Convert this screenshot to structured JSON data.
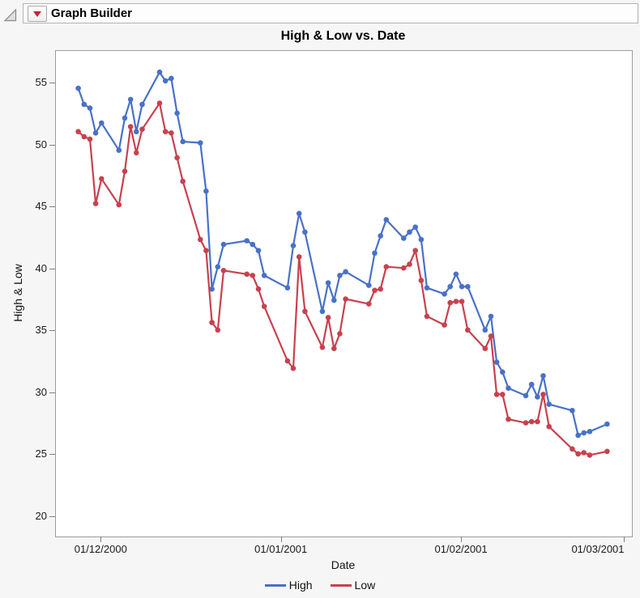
{
  "header": {
    "title": "Graph Builder",
    "icons": {
      "disclosure": "outline-open-triangle",
      "menu": "red-triangle-menu"
    },
    "menu_button_color": "#cf2030"
  },
  "chart_data": {
    "type": "line",
    "title": "High & Low vs. Date",
    "xlabel": "Date",
    "ylabel": "High & Low",
    "grid": false,
    "legend_position": "bottom",
    "ylim": [
      18.4,
      57.6
    ],
    "y_ticks": [
      20,
      25,
      30,
      35,
      40,
      45,
      50,
      55
    ],
    "x_ticks": [
      {
        "date": "2000-12-01",
        "label": "01/12/2000"
      },
      {
        "date": "2001-01-01",
        "label": "01/01/2001"
      },
      {
        "date": "2001-02-01",
        "label": "01/02/2001"
      },
      {
        "date": "2001-03-01",
        "label": "01/03/2001"
      }
    ],
    "dates": [
      "2000-11-27",
      "2000-11-28",
      "2000-11-29",
      "2000-11-30",
      "2000-12-01",
      "2000-12-04",
      "2000-12-05",
      "2000-12-06",
      "2000-12-07",
      "2000-12-08",
      "2000-12-11",
      "2000-12-12",
      "2000-12-13",
      "2000-12-14",
      "2000-12-15",
      "2000-12-18",
      "2000-12-19",
      "2000-12-20",
      "2000-12-21",
      "2000-12-22",
      "2000-12-26",
      "2000-12-27",
      "2000-12-28",
      "2000-12-29",
      "2001-01-02",
      "2001-01-03",
      "2001-01-04",
      "2001-01-05",
      "2001-01-08",
      "2001-01-09",
      "2001-01-10",
      "2001-01-11",
      "2001-01-12",
      "2001-01-16",
      "2001-01-17",
      "2001-01-18",
      "2001-01-19",
      "2001-01-22",
      "2001-01-23",
      "2001-01-24",
      "2001-01-25",
      "2001-01-26",
      "2001-01-29",
      "2001-01-30",
      "2001-01-31",
      "2001-02-01",
      "2001-02-02",
      "2001-02-05",
      "2001-02-06",
      "2001-02-07",
      "2001-02-08",
      "2001-02-09",
      "2001-02-12",
      "2001-02-13",
      "2001-02-14",
      "2001-02-15",
      "2001-02-16",
      "2001-02-20",
      "2001-02-21",
      "2001-02-22",
      "2001-02-23",
      "2001-02-26"
    ],
    "series": [
      {
        "name": "High",
        "color": "#4871C8",
        "values": [
          54.6,
          53.3,
          53.0,
          51.0,
          51.8,
          49.6,
          52.2,
          53.7,
          51.1,
          53.3,
          55.9,
          55.2,
          55.4,
          52.6,
          50.3,
          50.2,
          46.3,
          38.4,
          40.2,
          42.0,
          42.3,
          42.0,
          41.5,
          39.5,
          38.5,
          41.9,
          44.5,
          43.0,
          36.6,
          38.9,
          37.5,
          39.5,
          39.8,
          38.7,
          41.3,
          42.7,
          44.0,
          42.5,
          43.0,
          43.4,
          42.4,
          38.5,
          38.0,
          38.6,
          39.6,
          38.6,
          38.6,
          35.1,
          36.2,
          32.5,
          31.7,
          30.4,
          29.8,
          30.7,
          29.7,
          31.4,
          29.1,
          28.6,
          26.6,
          26.8,
          26.9,
          27.5
        ]
      },
      {
        "name": "Low",
        "color": "#C8414F",
        "values": [
          51.1,
          50.7,
          50.5,
          45.3,
          47.3,
          45.2,
          47.9,
          51.5,
          49.4,
          51.3,
          53.4,
          51.1,
          51.0,
          49.0,
          47.1,
          42.4,
          41.5,
          35.7,
          35.1,
          39.9,
          39.6,
          39.5,
          38.4,
          37.0,
          32.6,
          32.0,
          41.0,
          36.6,
          33.7,
          36.1,
          33.6,
          34.8,
          37.6,
          37.2,
          38.3,
          38.4,
          40.2,
          40.1,
          40.4,
          41.5,
          39.1,
          36.2,
          35.5,
          37.3,
          37.4,
          37.4,
          35.1,
          33.6,
          34.6,
          29.9,
          29.9,
          27.9,
          27.6,
          27.7,
          27.7,
          29.9,
          27.3,
          25.5,
          25.1,
          25.2,
          25.0,
          25.3
        ]
      }
    ]
  }
}
